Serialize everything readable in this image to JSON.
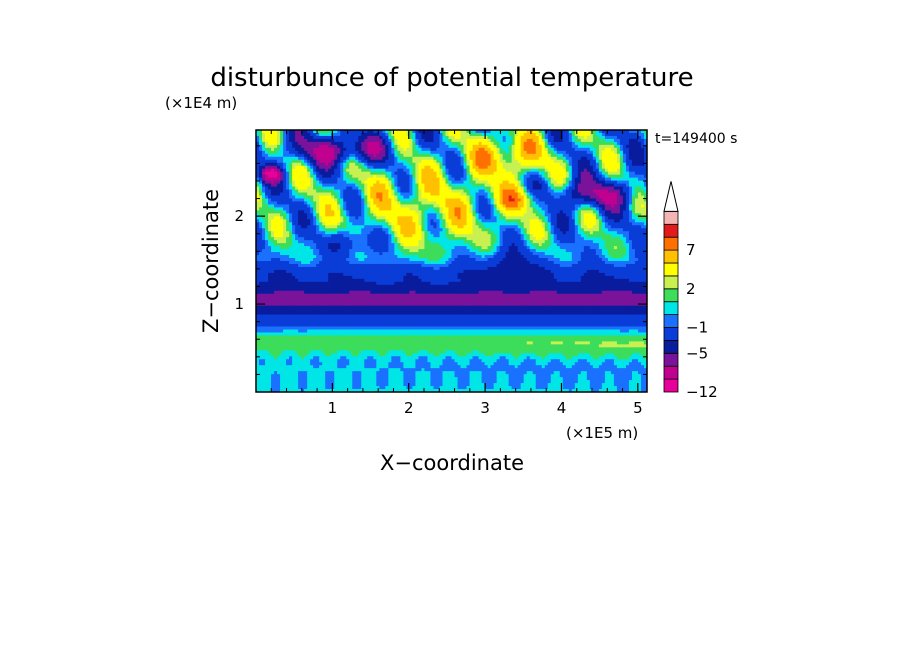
{
  "chart_data": {
    "type": "heatmap",
    "title": "disturbunce of potential temperature",
    "time_label": "t=149400 s",
    "xlabel": "X−coordinate",
    "ylabel": "Z−coordinate",
    "x_unit_label": "(×1E5 m)",
    "y_unit_label": "(×1E4 m)",
    "x_range": [
      0,
      5.12
    ],
    "y_range": [
      0,
      2.98
    ],
    "x_ticks": [
      {
        "value": 1,
        "label": "1"
      },
      {
        "value": 2,
        "label": "2"
      },
      {
        "value": 3,
        "label": "3"
      },
      {
        "value": 4,
        "label": "4"
      },
      {
        "value": 5,
        "label": "5"
      }
    ],
    "y_ticks": [
      {
        "value": 1,
        "label": "1"
      },
      {
        "value": 2,
        "label": "2"
      }
    ],
    "colorbar": {
      "levels": [
        -12,
        -10,
        -7,
        -5,
        -3,
        -1,
        0,
        1,
        2,
        3,
        5,
        7,
        9,
        11
      ],
      "labels": [
        {
          "value": -12,
          "label": "−12"
        },
        {
          "value": -5,
          "label": "−5"
        },
        {
          "value": -1,
          "label": "−1"
        },
        {
          "value": 2,
          "label": "2"
        },
        {
          "value": 7,
          "label": "7"
        }
      ],
      "colors": [
        "#e8009a",
        "#c0008f",
        "#7a129a",
        "#0a1c9e",
        "#0a3cd8",
        "#1a70ff",
        "#00e6e6",
        "#3cdd5a",
        "#c8f050",
        "#ffff00",
        "#ffc000",
        "#ff7000",
        "#e31a1c",
        "#f4b4b4"
      ],
      "over_color": "#ffffff",
      "extend": "max"
    }
  }
}
